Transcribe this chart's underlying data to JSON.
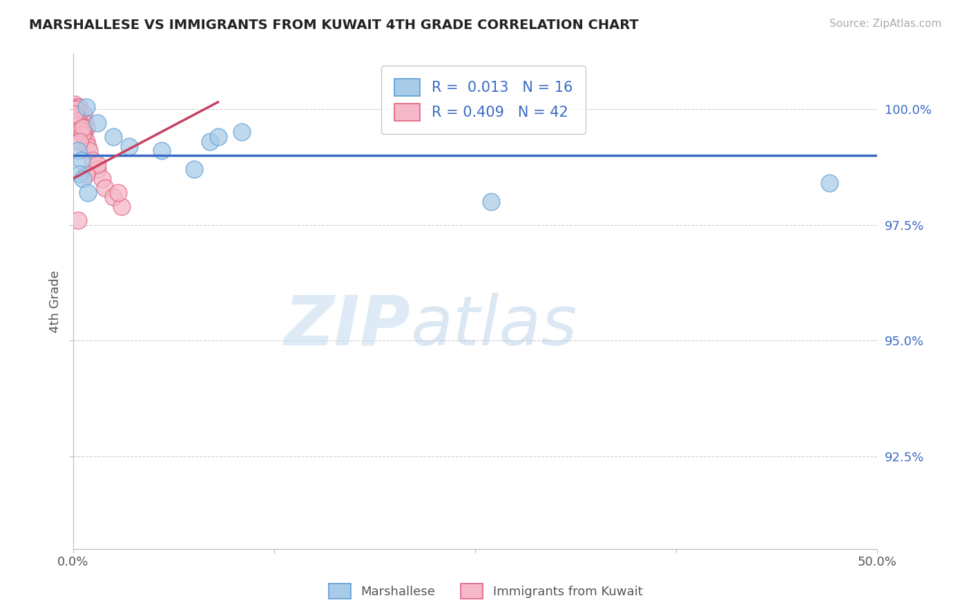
{
  "title": "MARSHALLESE VS IMMIGRANTS FROM KUWAIT 4TH GRADE CORRELATION CHART",
  "source": "Source: ZipAtlas.com",
  "ylabel": "4th Grade",
  "xlim": [
    0.0,
    50.0
  ],
  "ylim": [
    90.5,
    101.2
  ],
  "x_ticks": [
    0.0,
    12.5,
    25.0,
    37.5,
    50.0
  ],
  "x_tick_labels": [
    "0.0%",
    "",
    "",
    "",
    "50.0%"
  ],
  "y_ticks": [
    92.5,
    95.0,
    97.5,
    100.0
  ],
  "y_tick_labels": [
    "92.5%",
    "95.0%",
    "97.5%",
    "100.0%"
  ],
  "blue_color": "#a8cce8",
  "pink_color": "#f5b8c8",
  "blue_edge": "#5b9bd5",
  "pink_edge": "#e06080",
  "blue_R": 0.013,
  "blue_N": 16,
  "pink_R": 0.409,
  "pink_N": 42,
  "blue_line_color": "#3a6bc4",
  "pink_line_color": "#c84060",
  "watermark_zip": "ZIP",
  "watermark_atlas": "atlas",
  "bottom_legend_blue": "Marshallese",
  "bottom_legend_pink": "Immigrants from Kuwait",
  "blue_scatter_x": [
    0.8,
    1.5,
    2.5,
    0.3,
    0.5,
    3.5,
    8.5,
    9.0,
    0.4,
    0.6,
    7.5,
    26.0,
    47.0,
    0.9,
    5.5,
    10.5
  ],
  "blue_scatter_y": [
    100.05,
    99.7,
    99.4,
    99.1,
    98.9,
    99.2,
    99.3,
    99.4,
    98.6,
    98.5,
    98.7,
    98.0,
    98.4,
    98.2,
    99.1,
    99.5
  ],
  "pink_scatter_x": [
    0.1,
    0.2,
    0.15,
    0.25,
    0.3,
    0.35,
    0.4,
    0.45,
    0.5,
    0.55,
    0.6,
    0.65,
    0.7,
    0.75,
    0.8,
    0.1,
    0.2,
    0.3,
    0.5,
    0.6,
    0.7,
    0.8,
    0.9,
    1.0,
    1.2,
    1.5,
    1.8,
    2.0,
    2.5,
    3.0,
    0.15,
    0.25,
    0.35,
    0.45,
    0.55,
    0.1,
    0.6,
    0.4,
    2.8,
    0.3,
    1.5,
    0.8
  ],
  "pink_scatter_y": [
    100.1,
    100.05,
    100.0,
    99.9,
    99.85,
    99.8,
    100.05,
    99.9,
    99.75,
    99.7,
    99.6,
    99.9,
    99.5,
    99.7,
    99.6,
    99.9,
    100.0,
    99.8,
    99.6,
    99.5,
    99.4,
    99.3,
    99.2,
    99.1,
    98.9,
    98.7,
    98.5,
    98.3,
    98.1,
    97.9,
    99.85,
    99.75,
    99.65,
    99.55,
    99.45,
    99.9,
    99.6,
    99.3,
    98.2,
    97.6,
    98.8,
    98.6
  ],
  "grid_color": "#cccccc",
  "bg_color": "#ffffff",
  "blue_line_y_at_0": 99.0,
  "blue_line_y_at_50": 99.0,
  "pink_line_x0": 0.0,
  "pink_line_y0": 98.5,
  "pink_line_x1": 9.0,
  "pink_line_y1": 100.15
}
